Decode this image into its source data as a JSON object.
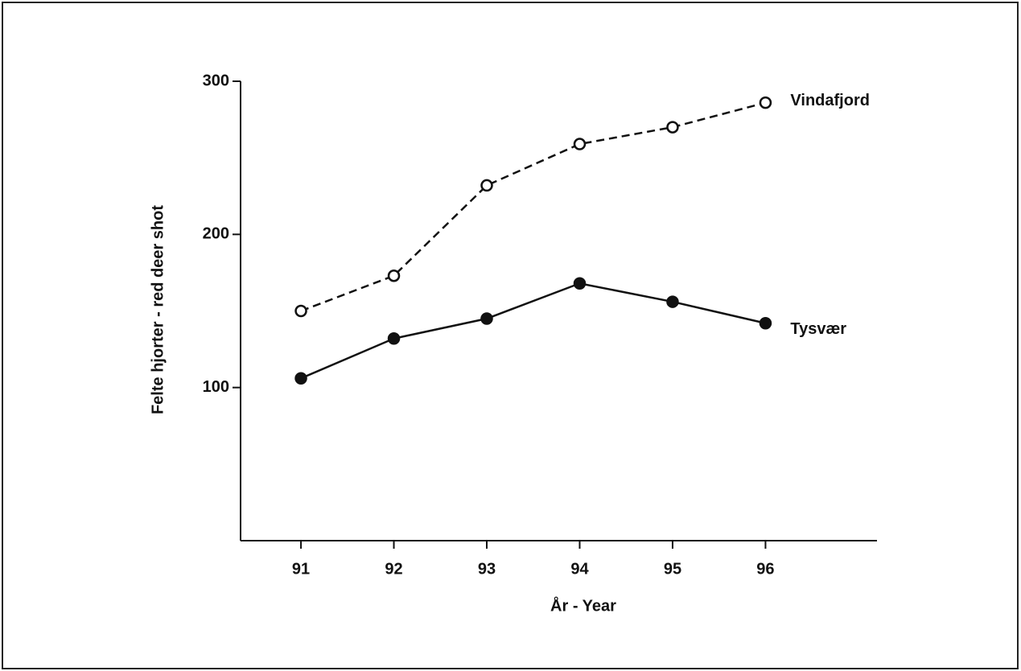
{
  "chart_data": {
    "type": "line",
    "x": [
      91,
      92,
      93,
      94,
      95,
      96
    ],
    "xlim": [
      90.35,
      97.2
    ],
    "xticks": [
      91,
      92,
      93,
      94,
      95,
      96
    ],
    "ylim": [
      0,
      300
    ],
    "yticks": [
      100,
      200,
      300
    ],
    "x_label": "År - Year",
    "y_label": "Felte hjorter - red deer shot",
    "series": [
      {
        "name": "Vindafjord",
        "color": "#111111",
        "marker": "open",
        "dashed": true,
        "values": [
          150,
          173,
          232,
          259,
          270,
          286
        ]
      },
      {
        "name": "Tysvær",
        "color": "#111111",
        "marker": "filled",
        "dashed": false,
        "values": [
          106,
          132,
          145,
          168,
          156,
          142
        ]
      }
    ]
  }
}
